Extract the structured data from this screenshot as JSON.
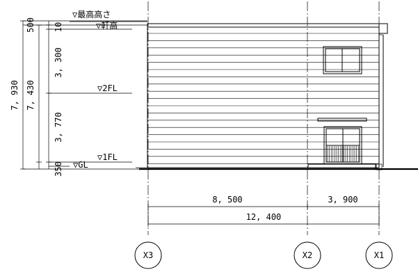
{
  "levels": {
    "max_height": "▽最高高さ",
    "eaves": "▽軒高",
    "floor2": "▽2FL",
    "floor1": "▽1FL",
    "ground": "▽GL"
  },
  "vertical_dims": {
    "overall": "7, 930",
    "to_eaves": "7, 430",
    "segments": [
      "500",
      "10",
      "3, 300",
      "3, 770",
      "350"
    ]
  },
  "horizontal_dims": {
    "spans": [
      "8, 500",
      "3, 900"
    ],
    "total": "12, 400"
  },
  "grid_axes": [
    "X3",
    "X2",
    "X1"
  ]
}
